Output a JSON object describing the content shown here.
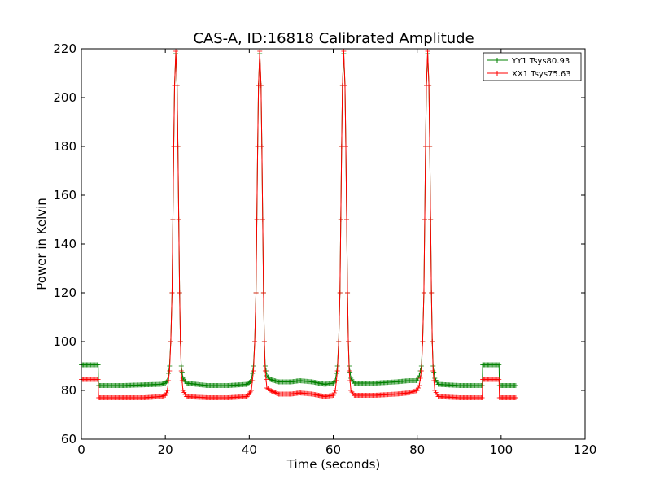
{
  "chart_data": {
    "type": "line",
    "title": "CAS-A, ID:16818 Calibrated Amplitude",
    "xlabel": "Time (seconds)",
    "ylabel": "Power in Kelvin",
    "xlim": [
      0,
      120
    ],
    "ylim": [
      60,
      220
    ],
    "xticks": [
      "0",
      "20",
      "40",
      "60",
      "80",
      "100",
      "120"
    ],
    "yticks": [
      "60",
      "80",
      "100",
      "120",
      "140",
      "160",
      "180",
      "200",
      "220"
    ],
    "grid": false,
    "legend_position": "top-right",
    "marker": "plus",
    "series": [
      {
        "name": "YY1 Tsys80.93",
        "color": "#008000",
        "points": [
          [
            0,
            90.5
          ],
          [
            4,
            90.5
          ],
          [
            4.1,
            82
          ],
          [
            10,
            82
          ],
          [
            15,
            82.3
          ],
          [
            19,
            82.5
          ],
          [
            20,
            83
          ],
          [
            20.5,
            84
          ],
          [
            21,
            90
          ],
          [
            21.3,
            100
          ],
          [
            21.6,
            120
          ],
          [
            21.8,
            150
          ],
          [
            22,
            180
          ],
          [
            22.2,
            205
          ],
          [
            22.5,
            218
          ],
          [
            22.8,
            205
          ],
          [
            23,
            180
          ],
          [
            23.2,
            150
          ],
          [
            23.4,
            120
          ],
          [
            23.6,
            100
          ],
          [
            23.8,
            90
          ],
          [
            24.2,
            85
          ],
          [
            25,
            83
          ],
          [
            30,
            82
          ],
          [
            35,
            82
          ],
          [
            39.5,
            82.5
          ],
          [
            40.5,
            84
          ],
          [
            41,
            90
          ],
          [
            41.3,
            100
          ],
          [
            41.6,
            120
          ],
          [
            41.8,
            150
          ],
          [
            42,
            180
          ],
          [
            42.2,
            205
          ],
          [
            42.5,
            218
          ],
          [
            42.8,
            205
          ],
          [
            43,
            180
          ],
          [
            43.2,
            150
          ],
          [
            43.4,
            120
          ],
          [
            43.6,
            100
          ],
          [
            43.8,
            90
          ],
          [
            44.2,
            86
          ],
          [
            45,
            84.5
          ],
          [
            47,
            83.5
          ],
          [
            50,
            83.5
          ],
          [
            52,
            84
          ],
          [
            55,
            83.5
          ],
          [
            58,
            82.5
          ],
          [
            60,
            83
          ],
          [
            60.5,
            84
          ],
          [
            61,
            90
          ],
          [
            61.3,
            100
          ],
          [
            61.6,
            120
          ],
          [
            61.8,
            150
          ],
          [
            62,
            180
          ],
          [
            62.2,
            205
          ],
          [
            62.5,
            218
          ],
          [
            62.8,
            205
          ],
          [
            63,
            180
          ],
          [
            63.2,
            150
          ],
          [
            63.4,
            120
          ],
          [
            63.6,
            100
          ],
          [
            63.8,
            90
          ],
          [
            64.2,
            85
          ],
          [
            65,
            83
          ],
          [
            70,
            83
          ],
          [
            75,
            83.5
          ],
          [
            78,
            84
          ],
          [
            80,
            84
          ],
          [
            80.5,
            86
          ],
          [
            81,
            90
          ],
          [
            81.3,
            100
          ],
          [
            81.6,
            120
          ],
          [
            81.8,
            150
          ],
          [
            82,
            180
          ],
          [
            82.2,
            205
          ],
          [
            82.5,
            218
          ],
          [
            82.8,
            205
          ],
          [
            83,
            180
          ],
          [
            83.2,
            150
          ],
          [
            83.4,
            120
          ],
          [
            83.6,
            100
          ],
          [
            83.8,
            90
          ],
          [
            84.2,
            85
          ],
          [
            85,
            82.5
          ],
          [
            90,
            82
          ],
          [
            95.5,
            82
          ],
          [
            95.6,
            90.5
          ],
          [
            99.5,
            90.5
          ],
          [
            99.6,
            82
          ],
          [
            103.5,
            82
          ]
        ]
      },
      {
        "name": "XX1 Tsys75.63",
        "color": "#ff0000",
        "points": [
          [
            0,
            84.5
          ],
          [
            4,
            84.5
          ],
          [
            4.1,
            77
          ],
          [
            10,
            77
          ],
          [
            15,
            77
          ],
          [
            19,
            77.5
          ],
          [
            20,
            78
          ],
          [
            20.5,
            80
          ],
          [
            21,
            88
          ],
          [
            21.3,
            100
          ],
          [
            21.6,
            120
          ],
          [
            21.8,
            150
          ],
          [
            22,
            180
          ],
          [
            22.2,
            205
          ],
          [
            22.5,
            219
          ],
          [
            22.8,
            205
          ],
          [
            23,
            180
          ],
          [
            23.2,
            150
          ],
          [
            23.4,
            120
          ],
          [
            23.6,
            100
          ],
          [
            23.8,
            88
          ],
          [
            24.2,
            80
          ],
          [
            25,
            77.5
          ],
          [
            30,
            77
          ],
          [
            35,
            77
          ],
          [
            39.5,
            77.5
          ],
          [
            40.5,
            80
          ],
          [
            41,
            88
          ],
          [
            41.3,
            100
          ],
          [
            41.6,
            120
          ],
          [
            41.8,
            150
          ],
          [
            42,
            180
          ],
          [
            42.2,
            205
          ],
          [
            42.5,
            219
          ],
          [
            42.8,
            205
          ],
          [
            43,
            180
          ],
          [
            43.2,
            150
          ],
          [
            43.4,
            120
          ],
          [
            43.6,
            100
          ],
          [
            43.8,
            88
          ],
          [
            44.2,
            81
          ],
          [
            45,
            80
          ],
          [
            47,
            78.5
          ],
          [
            50,
            78.5
          ],
          [
            52,
            79
          ],
          [
            55,
            78.5
          ],
          [
            58,
            77.5
          ],
          [
            60,
            78
          ],
          [
            60.5,
            80
          ],
          [
            61,
            88
          ],
          [
            61.3,
            100
          ],
          [
            61.6,
            120
          ],
          [
            61.8,
            150
          ],
          [
            62,
            180
          ],
          [
            62.2,
            205
          ],
          [
            62.5,
            219
          ],
          [
            62.8,
            205
          ],
          [
            63,
            180
          ],
          [
            63.2,
            150
          ],
          [
            63.4,
            120
          ],
          [
            63.6,
            100
          ],
          [
            63.8,
            88
          ],
          [
            64.2,
            80
          ],
          [
            65,
            78
          ],
          [
            70,
            78
          ],
          [
            75,
            78.5
          ],
          [
            78,
            79
          ],
          [
            80,
            80
          ],
          [
            80.5,
            82
          ],
          [
            81,
            88
          ],
          [
            81.3,
            100
          ],
          [
            81.6,
            120
          ],
          [
            81.8,
            150
          ],
          [
            82,
            180
          ],
          [
            82.2,
            205
          ],
          [
            82.5,
            219
          ],
          [
            82.8,
            205
          ],
          [
            83,
            180
          ],
          [
            83.2,
            150
          ],
          [
            83.4,
            120
          ],
          [
            83.6,
            100
          ],
          [
            83.8,
            88
          ],
          [
            84.2,
            80
          ],
          [
            85,
            77.5
          ],
          [
            90,
            77
          ],
          [
            95.5,
            77
          ],
          [
            95.6,
            84.5
          ],
          [
            99.5,
            84.5
          ],
          [
            99.6,
            77
          ],
          [
            103.5,
            77
          ]
        ]
      }
    ]
  }
}
